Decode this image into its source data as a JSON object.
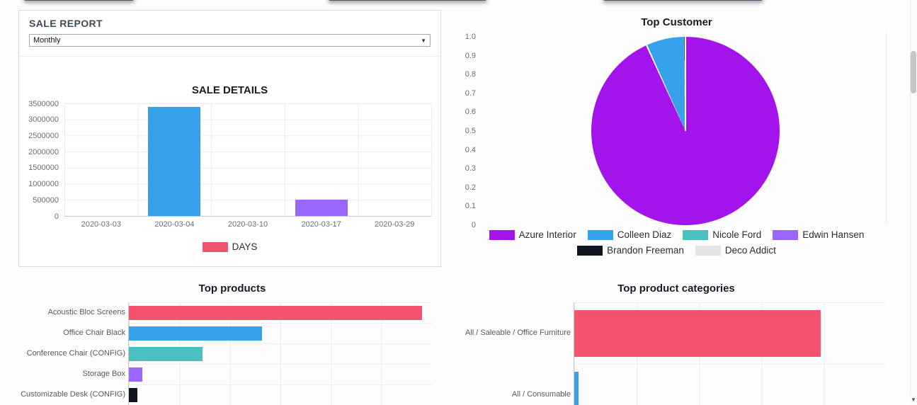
{
  "sale_report_card": {
    "title": "SALE REPORT",
    "period_select": {
      "value": "Monthly",
      "dropdown_icon": "▼"
    }
  },
  "chart_data": [
    {
      "id": "sale_details",
      "type": "bar",
      "title": "SALE DETAILS",
      "categories": [
        "2020-03-03",
        "2020-03-04",
        "2020-03-10",
        "2020-03-17",
        "2020-03-29"
      ],
      "values": [
        0,
        3400000,
        0,
        500000,
        0
      ],
      "bar_colors": [
        "#f4536e",
        "#36a2eb",
        "#4bc0c0",
        "#9966ff",
        "#10151f"
      ],
      "ylim": [
        0,
        3500000
      ],
      "yticks": [
        0,
        500000,
        1000000,
        1500000,
        2000000,
        2500000,
        3000000,
        3500000
      ],
      "grid": true,
      "legend_position": "bottom",
      "legend": [
        {
          "label": "DAYS",
          "color": "#f4536e"
        }
      ]
    },
    {
      "id": "top_customer",
      "type": "pie",
      "title": "Top Customer",
      "labels": [
        "Azure Interior",
        "Colleen Diaz",
        "Nicole Ford",
        "Edwin Hansen",
        "Brandon Freeman",
        "Deco Addict"
      ],
      "values": [
        93.1,
        6.5,
        0.1,
        0.1,
        0.1,
        0.1
      ],
      "colors": [
        "#a313ec",
        "#36a2eb",
        "#4bc0c0",
        "#9966ff",
        "#10151f",
        "#e5e5e5"
      ],
      "axis_ticks": [
        "1.0",
        "0.9",
        "0.8",
        "0.7",
        "0.6",
        "0.5",
        "0.4",
        "0.3",
        "0.2",
        "0.1",
        "0"
      ],
      "legend_position": "bottom"
    },
    {
      "id": "top_products",
      "type": "bar",
      "orientation": "horizontal",
      "title": "Top products",
      "categories": [
        "Acoustic Bloc Screens",
        "Office Chair Black",
        "Conference Chair (CONFIG)",
        "Storage Box",
        "Customizable Desk (CONFIG)"
      ],
      "values": [
        96.7,
        44.0,
        24.2,
        4.4,
        2.8
      ],
      "xlim": [
        0,
        100
      ],
      "bar_colors": [
        "#f4536e",
        "#36a2eb",
        "#4bc0c0",
        "#9966ff",
        "#10151f"
      ],
      "grid": true
    },
    {
      "id": "top_product_categories",
      "type": "bar",
      "orientation": "horizontal",
      "title": "Top product categories",
      "categories": [
        "All / Saleable / Office Furniture",
        "All / Consumable"
      ],
      "values": [
        79.0,
        1.3
      ],
      "xlim": [
        0,
        100
      ],
      "bar_colors": [
        "#f4536e",
        "#36a2eb"
      ],
      "grid": true
    }
  ],
  "scrollbar": {
    "down_arrow": "▼"
  }
}
